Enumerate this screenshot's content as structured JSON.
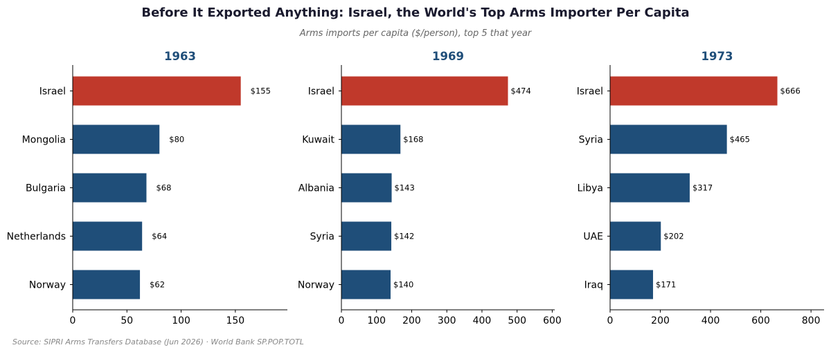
{
  "header": {
    "title": "Before It Exported Anything: Israel, the World's Top Arms Importer Per Capita",
    "subtitle": "Arms imports per capita ($/person), top 5 that year"
  },
  "footer": {
    "source": "Source: SIPRI Arms Transfers Database (Jun 2026) · World Bank SP.POP.TOTL"
  },
  "colors": {
    "highlight": "#c0392b",
    "default": "#1f4e79",
    "panel_title": "#1f4e79"
  },
  "chart_data": [
    {
      "type": "bar",
      "orientation": "horizontal",
      "title": "1963",
      "categories": [
        "Israel",
        "Mongolia",
        "Bulgaria",
        "Netherlands",
        "Norway"
      ],
      "values": [
        155,
        80,
        68,
        64,
        62
      ],
      "value_labels": [
        "$155",
        "$80",
        "$68",
        "$64",
        "$62"
      ],
      "highlight": "Israel",
      "xlim": [
        0,
        198
      ],
      "xticks": [
        0,
        50,
        100,
        150
      ]
    },
    {
      "type": "bar",
      "orientation": "horizontal",
      "title": "1969",
      "categories": [
        "Israel",
        "Kuwait",
        "Albania",
        "Syria",
        "Norway"
      ],
      "values": [
        474,
        168,
        143,
        142,
        140
      ],
      "value_labels": [
        "$474",
        "$168",
        "$143",
        "$142",
        "$140"
      ],
      "highlight": "Israel",
      "xlim": [
        0,
        607
      ],
      "xticks": [
        0,
        100,
        200,
        300,
        400,
        500,
        600
      ]
    },
    {
      "type": "bar",
      "orientation": "horizontal",
      "title": "1973",
      "categories": [
        "Israel",
        "Syria",
        "Libya",
        "UAE",
        "Iraq"
      ],
      "values": [
        666,
        465,
        317,
        202,
        171
      ],
      "value_labels": [
        "$666",
        "$465",
        "$317",
        "$202",
        "$171"
      ],
      "highlight": "Israel",
      "xlim": [
        0,
        852
      ],
      "xticks": [
        0,
        200,
        400,
        600,
        800
      ]
    }
  ]
}
